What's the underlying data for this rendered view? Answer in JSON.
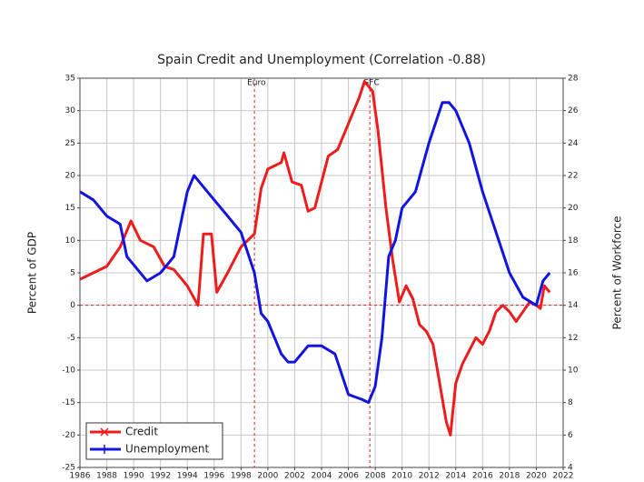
{
  "chart_data": {
    "type": "line",
    "title": "Spain Credit and Unemployment (Correlation -0.88)",
    "ylabel": "Percent of GDP",
    "y2label": "Percent of Workforce",
    "xlim": [
      1986,
      2022
    ],
    "xticks": [
      1986,
      1988,
      1990,
      1992,
      1994,
      1996,
      1998,
      2000,
      2002,
      2004,
      2006,
      2008,
      2010,
      2012,
      2014,
      2016,
      2018,
      2020,
      2022
    ],
    "ylim": [
      -25,
      35
    ],
    "yticks": [
      -25,
      -20,
      -15,
      -10,
      -5,
      0,
      5,
      10,
      15,
      20,
      25,
      30,
      35
    ],
    "y2lim": [
      4,
      28
    ],
    "y2ticks": [
      4,
      6,
      8,
      10,
      12,
      14,
      16,
      18,
      20,
      22,
      24,
      26,
      28
    ],
    "grid": true,
    "legend": "lower left",
    "annotations": [
      {
        "text": "Euro",
        "x": 1999
      },
      {
        "text": "GFC",
        "x": 2007.6
      }
    ],
    "hlines": [
      0
    ],
    "series": [
      {
        "name": "Credit",
        "color": "#ee1c1c",
        "axis": "y",
        "x": [
          1986,
          1987,
          1988,
          1989,
          1989.8,
          1990.5,
          1991.5,
          1992.3,
          1993,
          1994,
          1994.8,
          1995.2,
          1995.8,
          1996.2,
          1997,
          1998,
          1999,
          1999.5,
          2000,
          2001,
          2001.2,
          2001.8,
          2002.5,
          2003,
          2003.5,
          2004,
          2004.5,
          2005.2,
          2006,
          2006.8,
          2007.2,
          2007.8,
          2008.2,
          2008.8,
          2009.3,
          2009.8,
          2010.3,
          2010.8,
          2011.3,
          2011.8,
          2012.3,
          2012.8,
          2013.3,
          2013.6,
          2014,
          2014.5,
          2015,
          2015.5,
          2016,
          2016.5,
          2017,
          2017.5,
          2018,
          2018.5,
          2019,
          2019.5,
          2020,
          2020.3,
          2020.6,
          2021
        ],
        "values": [
          4,
          5,
          6,
          9,
          13,
          10,
          9,
          6,
          5.5,
          3,
          0,
          11,
          11,
          2,
          5,
          9,
          11,
          18,
          21,
          22,
          23.5,
          19,
          18.5,
          14.5,
          15,
          19,
          23,
          24,
          28,
          32,
          34.5,
          33,
          27,
          15,
          7,
          0.5,
          3,
          1,
          -3,
          -4,
          -6,
          -12,
          -18,
          -20,
          -12,
          -9,
          -7,
          -5,
          -6,
          -4,
          -1,
          0,
          -1,
          -2.5,
          -1,
          0.5,
          0,
          -0.5,
          3,
          2
        ]
      },
      {
        "name": "Unemployment",
        "color": "#1414e0",
        "axis": "y2",
        "x": [
          1986,
          1987,
          1988,
          1989,
          1989.5,
          1990,
          1991,
          1992,
          1993,
          1994,
          1994.5,
          1995,
          1996,
          1997,
          1998,
          1999,
          1999.5,
          2000,
          2001,
          2001.5,
          2002,
          2003,
          2004,
          2005,
          2006,
          2007,
          2007.5,
          2008,
          2008.5,
          2009,
          2009.5,
          2010,
          2011,
          2012,
          2013,
          2013.5,
          2014,
          2015,
          2016,
          2017,
          2018,
          2019,
          2020,
          2020.5,
          2021
        ],
        "values": [
          21,
          20.5,
          19.5,
          19,
          17,
          16.5,
          15.5,
          16,
          17,
          21,
          22,
          21.5,
          20.5,
          19.5,
          18.5,
          16,
          13.5,
          13,
          11,
          10.5,
          10.5,
          11.5,
          11.5,
          11,
          8.5,
          8.2,
          8,
          9,
          12,
          17,
          18,
          20,
          21,
          24,
          26.5,
          26.5,
          26,
          24,
          21,
          18.5,
          16,
          14.5,
          14,
          15.5,
          16
        ]
      }
    ]
  }
}
